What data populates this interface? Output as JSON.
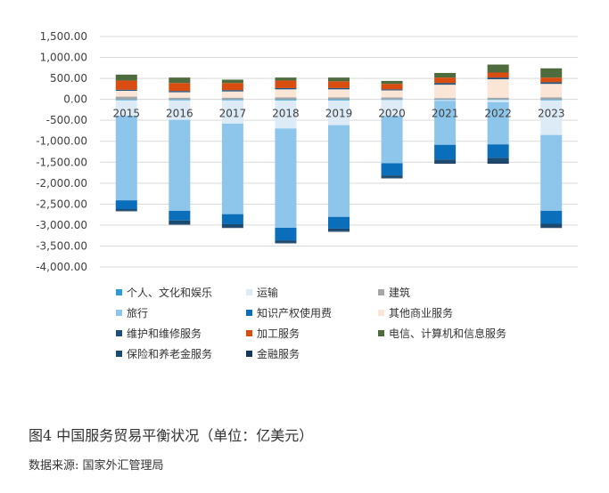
{
  "chart_data": {
    "type": "bar",
    "stacked": true,
    "categories": [
      "2015",
      "2016",
      "2017",
      "2018",
      "2019",
      "2020",
      "2021",
      "2022",
      "2023"
    ],
    "ylim": [
      -4000,
      1500
    ],
    "yticks": [
      1500,
      1000,
      500,
      0,
      -500,
      -1000,
      -1500,
      -2000,
      -2500,
      -3000,
      -3500,
      -4000
    ],
    "ytick_labels": [
      "1,500.00",
      "1,000.00",
      "500.00",
      "0.00",
      "-500.00",
      "-1,000.00",
      "-1,500.00",
      "-2,000.00",
      "-2,500.00",
      "-3,000.00",
      "-3,500.00",
      "-4,000.00"
    ],
    "grid": true,
    "legend_position": "bottom",
    "series": [
      {
        "name": "个人、文化和娱乐",
        "color": "#2E9BD6",
        "values": [
          -20,
          -20,
          -20,
          -25,
          -25,
          -15,
          -15,
          -15,
          -20
        ]
      },
      {
        "name": "运输",
        "color": "#DDEBF7",
        "values": [
          -370,
          -470,
          -560,
          -670,
          -590,
          -380,
          -20,
          -50,
          -830
        ]
      },
      {
        "name": "建筑",
        "color": "#A6A6A6",
        "values": [
          65,
          40,
          40,
          50,
          50,
          45,
          30,
          40,
          50
        ]
      },
      {
        "name": "旅行",
        "color": "#8DC6EA",
        "values": [
          -2020,
          -2170,
          -2160,
          -2370,
          -2190,
          -1130,
          -1050,
          -1010,
          -1810
        ]
      },
      {
        "name": "知识产权使用费",
        "color": "#0B6EBB",
        "values": [
          -210,
          -230,
          -240,
          -300,
          -280,
          -290,
          -350,
          -320,
          -310
        ]
      },
      {
        "name": "其他商业服务",
        "color": "#FBE5D6",
        "values": [
          140,
          130,
          150,
          190,
          190,
          170,
          320,
          440,
          320
        ]
      },
      {
        "name": "维护和维修服务",
        "color": "#1F4E79",
        "values": [
          25,
          30,
          30,
          30,
          30,
          25,
          40,
          40,
          40
        ]
      },
      {
        "name": "加工服务",
        "color": "#D94E10",
        "values": [
          220,
          190,
          170,
          180,
          160,
          130,
          130,
          120,
          110
        ]
      },
      {
        "name": "电信、计算机和信息服务",
        "color": "#4D6B3C",
        "values": [
          140,
          130,
          80,
          70,
          90,
          70,
          110,
          190,
          220
        ]
      },
      {
        "name": "保险和养老金服务",
        "color": "#1A4A70",
        "values": [
          -40,
          -90,
          -70,
          -60,
          -60,
          -60,
          -80,
          -110,
          -80
        ]
      },
      {
        "name": "金融服务",
        "color": "#16375C",
        "values": [
          -10,
          -10,
          -20,
          -10,
          -15,
          -10,
          -20,
          -30,
          -20
        ]
      }
    ]
  },
  "caption": "图4 中国服务贸易平衡状况（单位：亿美元）",
  "source": "数据来源: 国家外汇管理局"
}
